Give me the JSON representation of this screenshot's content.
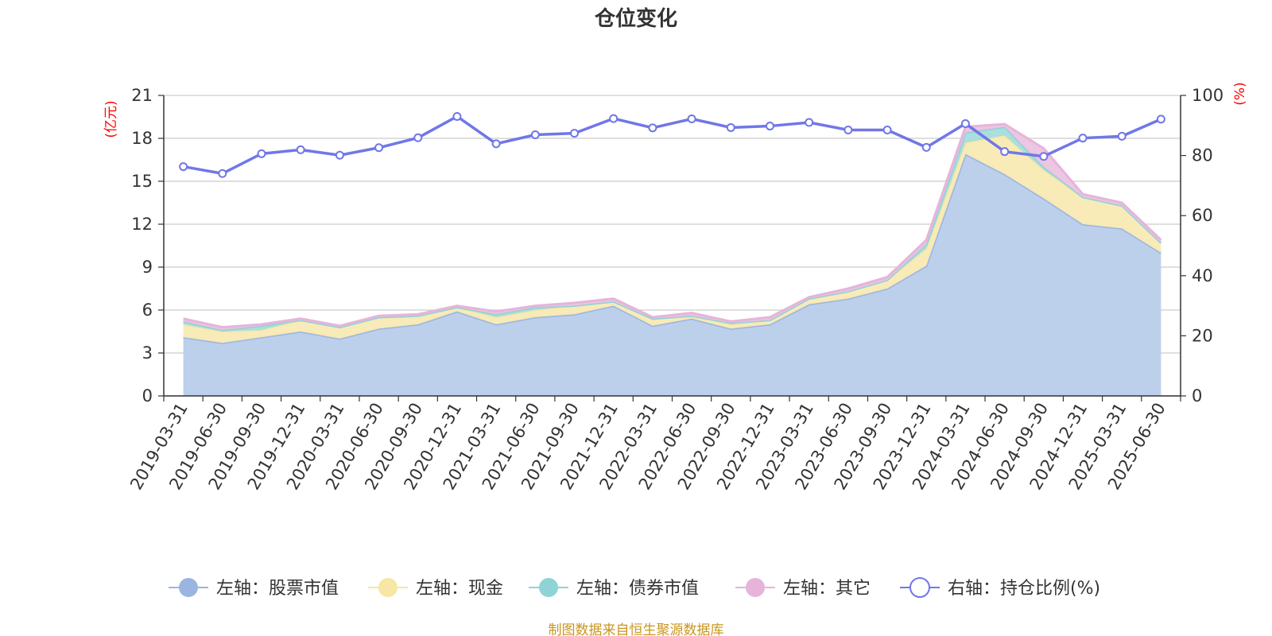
{
  "chart_data": {
    "type": "area",
    "title": "仓位变化",
    "left_unit": "(亿元)",
    "right_unit": "(%)",
    "left_ylim": [
      0,
      21
    ],
    "left_ticks": [
      "0",
      "3",
      "6",
      "9",
      "12",
      "15",
      "18",
      "21"
    ],
    "right_ylim": [
      0,
      100
    ],
    "right_ticks": [
      "0",
      "20",
      "40",
      "60",
      "80",
      "100"
    ],
    "grid": true,
    "legend_position": "bottom",
    "categories": [
      "2019-03-31",
      "2019-06-30",
      "2019-09-30",
      "2019-12-31",
      "2020-03-31",
      "2020-06-30",
      "2020-09-30",
      "2020-12-31",
      "2021-03-31",
      "2021-06-30",
      "2021-09-30",
      "2021-12-31",
      "2022-03-31",
      "2022-06-30",
      "2022-09-30",
      "2022-12-31",
      "2023-03-31",
      "2023-06-30",
      "2023-09-30",
      "2023-12-31",
      "2024-03-31",
      "2024-06-30",
      "2024-09-30",
      "2024-12-31",
      "2025-03-31",
      "2025-06-30"
    ],
    "series": [
      {
        "name": "左轴：股票市值",
        "axis": "left",
        "kind": "area",
        "color": "#9ab5e1",
        "fill": "#b8cdeb",
        "values": [
          4.1,
          3.7,
          4.1,
          4.5,
          4.0,
          4.7,
          5.0,
          5.9,
          5.0,
          5.5,
          5.7,
          6.3,
          4.9,
          5.4,
          4.7,
          5.0,
          6.4,
          6.8,
          7.5,
          9.1,
          16.9,
          15.5,
          13.8,
          12.0,
          11.7,
          10.0
        ]
      },
      {
        "name": "左轴：现金",
        "axis": "left",
        "kind": "area",
        "color": "#f7e6a4",
        "fill": "#f9eab4",
        "values": [
          0.9,
          0.8,
          0.5,
          0.8,
          0.8,
          0.8,
          0.6,
          0.3,
          0.5,
          0.5,
          0.6,
          0.3,
          0.5,
          0.2,
          0.3,
          0.3,
          0.4,
          0.5,
          0.6,
          1.2,
          0.8,
          2.7,
          2.0,
          1.9,
          1.6,
          0.7
        ]
      },
      {
        "name": "左轴：债券市值",
        "axis": "left",
        "kind": "area",
        "color": "#8fd3d6",
        "fill": "#a6dcdc",
        "values": [
          0.2,
          0.1,
          0.3,
          0.0,
          0.0,
          0.0,
          0.0,
          0.0,
          0.2,
          0.2,
          0.0,
          0.0,
          0.0,
          0.0,
          0.1,
          0.0,
          0.0,
          0.0,
          0.0,
          0.3,
          0.7,
          0.6,
          0.2,
          0.0,
          0.0,
          0.0
        ]
      },
      {
        "name": "左轴：其它",
        "axis": "left",
        "kind": "area",
        "color": "#e6b4db",
        "fill": "#ebc3e2",
        "values": [
          0.2,
          0.2,
          0.1,
          0.1,
          0.1,
          0.1,
          0.1,
          0.1,
          0.2,
          0.1,
          0.2,
          0.2,
          0.1,
          0.2,
          0.1,
          0.2,
          0.1,
          0.2,
          0.2,
          0.3,
          0.4,
          0.2,
          1.3,
          0.2,
          0.2,
          0.2
        ]
      },
      {
        "name": "右轴：持仓比例(%)",
        "axis": "right",
        "kind": "line",
        "color": "#7077e8",
        "values": [
          76.3,
          74.0,
          80.6,
          81.9,
          80.1,
          82.6,
          85.9,
          93.0,
          83.9,
          86.9,
          87.4,
          92.3,
          89.2,
          92.2,
          89.3,
          89.8,
          91.0,
          88.5,
          88.5,
          82.7,
          90.6,
          81.3,
          79.7,
          85.8,
          86.4,
          92.1
        ]
      }
    ]
  },
  "footer": "制图数据来自恒生聚源数据库"
}
